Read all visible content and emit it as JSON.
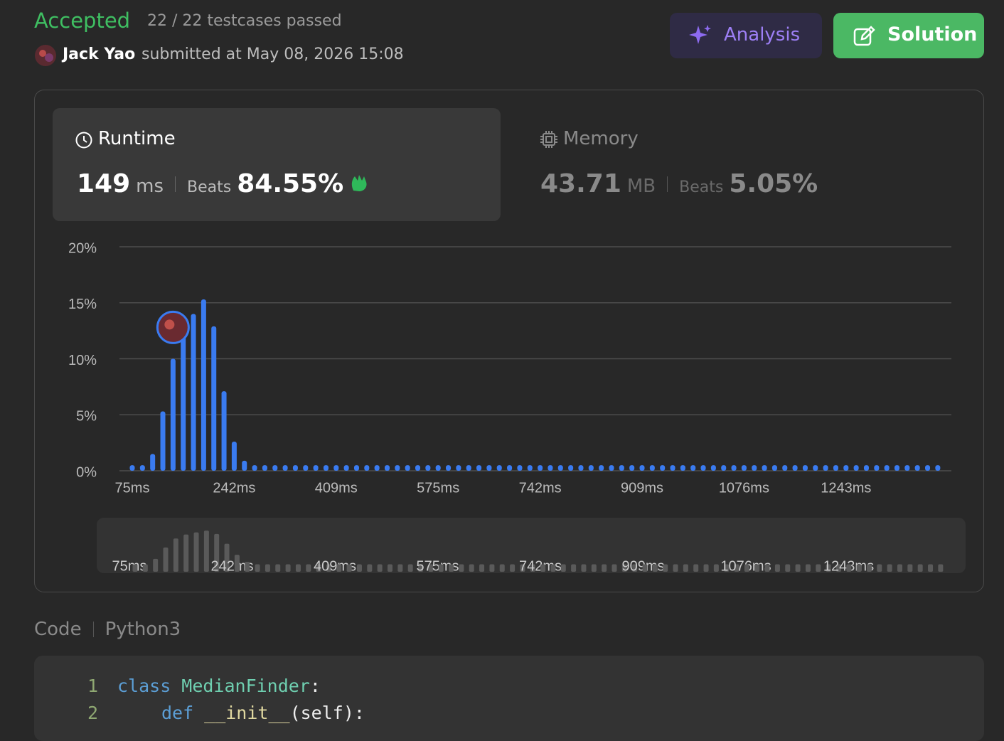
{
  "header": {
    "status": "Accepted",
    "testcases": "22 / 22 testcases passed",
    "user": "Jack Yao",
    "submitted": "submitted at May 08, 2026 15:08",
    "analysis_button": "Analysis",
    "solution_button": "Solution"
  },
  "runtime": {
    "label": "Runtime",
    "value": "149",
    "unit": "ms",
    "beats_label": "Beats",
    "beats": "84.55%"
  },
  "memory": {
    "label": "Memory",
    "value": "43.71",
    "unit": "MB",
    "beats_label": "Beats",
    "beats": "5.05%"
  },
  "chart_data": {
    "type": "bar",
    "color": "#3a7bf0",
    "categories": [
      "75ms",
      null,
      null,
      null,
      null,
      null,
      null,
      null,
      null,
      null,
      "242ms",
      null,
      null,
      null,
      null,
      null,
      null,
      null,
      null,
      null,
      "409ms",
      null,
      null,
      null,
      null,
      null,
      null,
      null,
      null,
      null,
      "575ms",
      null,
      null,
      null,
      null,
      null,
      null,
      null,
      null,
      null,
      "742ms",
      null,
      null,
      null,
      null,
      null,
      null,
      null,
      null,
      null,
      "909ms",
      null,
      null,
      null,
      null,
      null,
      null,
      null,
      null,
      null,
      "1076ms",
      null,
      null,
      null,
      null,
      null,
      null,
      null,
      null,
      null,
      "1243ms",
      null,
      null,
      null,
      null,
      null,
      null,
      null,
      null,
      null
    ],
    "values": [
      0.5,
      0.5,
      1.5,
      5.3,
      10.0,
      12.5,
      14.0,
      15.3,
      12.9,
      7.1,
      2.6,
      0.9,
      0.5,
      0.5,
      0.5,
      0.5,
      0.5,
      0.5,
      0.5,
      0.5,
      0.5,
      0.5,
      0.5,
      0.5,
      0.5,
      0.5,
      0.5,
      0.5,
      0.5,
      0.5,
      0.5,
      0.5,
      0.5,
      0.5,
      0.5,
      0.5,
      0.5,
      0.5,
      0.5,
      0.5,
      0.5,
      0.5,
      0.5,
      0.5,
      0.5,
      0.5,
      0.5,
      0.5,
      0.5,
      0.5,
      0.5,
      0.5,
      0.5,
      0.5,
      0.5,
      0.5,
      0.5,
      0.5,
      0.5,
      0.5,
      0.5,
      0.5,
      0.5,
      0.5,
      0.5,
      0.5,
      0.5,
      0.5,
      0.5,
      0.5,
      0.5,
      0.5,
      0.5,
      0.5,
      0.5,
      0.5,
      0.5,
      0.5,
      0.5,
      0.5
    ],
    "ylim": [
      0,
      20
    ],
    "yticks": [
      {
        "value": 0,
        "label": "0%"
      },
      {
        "value": 5,
        "label": "5%"
      },
      {
        "value": 10,
        "label": "10%"
      },
      {
        "value": 15,
        "label": "15%"
      },
      {
        "value": 20,
        "label": "20%"
      }
    ],
    "grid": true
  },
  "code": {
    "label": "Code",
    "language": "Python3",
    "lines": [
      {
        "number": 1,
        "keyword": "class",
        "name": "MedianFinder",
        "rest": ":"
      },
      {
        "number": 2,
        "keyword": "def",
        "name": "__init__",
        "rest": "(self):"
      }
    ]
  }
}
